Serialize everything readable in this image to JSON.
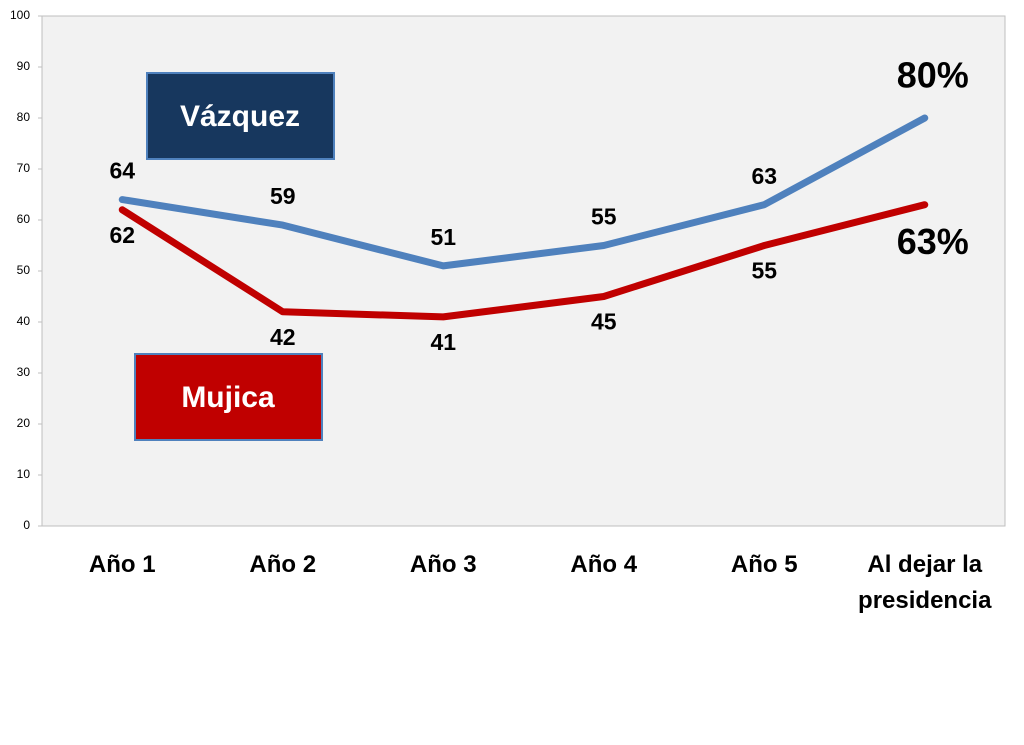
{
  "chart_data": {
    "type": "line",
    "categories": [
      "Año 1",
      "Año 2",
      "Año 3",
      "Año 4",
      "Año 5",
      "Al dejar la presidencia"
    ],
    "series": [
      {
        "name": "Vázquez",
        "color": "#4f81bd",
        "values": [
          64,
          59,
          51,
          55,
          63,
          80
        ],
        "value_labels": [
          "64",
          "59",
          "51",
          "55",
          "63",
          "80%"
        ]
      },
      {
        "name": "Mujica",
        "color": "#c00000",
        "values": [
          62,
          42,
          41,
          45,
          55,
          63
        ],
        "value_labels": [
          "62",
          "42",
          "41",
          "45",
          "55",
          "63%"
        ]
      }
    ],
    "ylim": [
      0,
      100
    ],
    "yticks": [
      0,
      10,
      20,
      30,
      40,
      50,
      60,
      70,
      80,
      90,
      100
    ],
    "grid": false
  }
}
